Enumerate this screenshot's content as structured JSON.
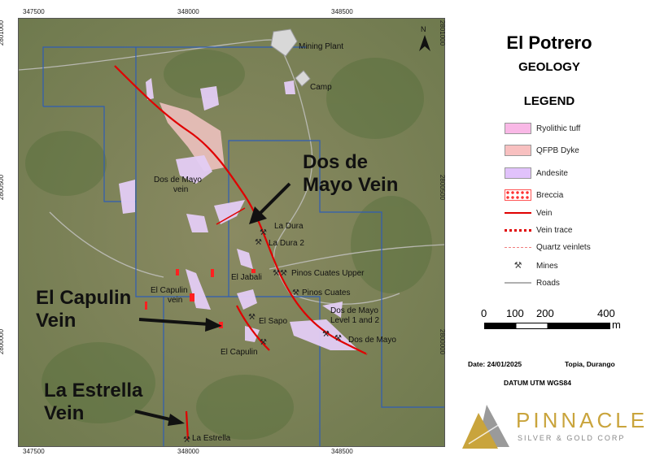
{
  "map": {
    "coords_top": [
      "347500",
      "348000",
      "348500"
    ],
    "coords_left": [
      "2801000",
      "2800500",
      "2800000"
    ],
    "north_label": "N",
    "labels": {
      "mining_plant": "Mining Plant",
      "camp": "Camp",
      "dos_de_mayo_vein_1": "Dos de Mayo",
      "dos_de_mayo_vein_2": "vein",
      "la_dura": "La Dura",
      "la_dura_2": "La Dura 2",
      "pinos_cuates_upper": "Pinos Cuates Upper",
      "el_jabali": "El Jabali",
      "pinos_cuates": "Pinos Cuates",
      "el_capulin_vein_1": "El Capulin",
      "el_capulin_vein_2": "vein",
      "el_sapo": "El Sapo",
      "dos_de_mayo_level_1": "Dos de Mayo",
      "dos_de_mayo_level_2": "Level 1 and 2",
      "dos_de_mayo": "Dos de Mayo",
      "el_capulin": "El Capulin",
      "la_estrella": "La Estrella"
    },
    "callouts": {
      "dos_de_mayo_vein_1": "Dos de",
      "dos_de_mayo_vein_2": "Mayo Vein",
      "el_capulin_vein_1": "El Capulin",
      "el_capulin_vein_2": "Vein",
      "la_estrella_vein_1": "La Estrella",
      "la_estrella_vein_2": "Vein"
    }
  },
  "title": "El Potrero",
  "subtitle": "GEOLOGY",
  "legend": {
    "title": "LEGEND",
    "items": [
      {
        "label": "Ryolithic tuff",
        "color": "#f9b8e6"
      },
      {
        "label": "QFPB Dyke",
        "color": "#f8c0c0"
      },
      {
        "label": "Andesite",
        "color": "#e1c2fb"
      },
      {
        "label": "Breccia",
        "color": "#ff0000"
      },
      {
        "label": "Vein",
        "color": "#e00000"
      },
      {
        "label": "Vein trace",
        "color": "#e00000"
      },
      {
        "label": "Quartz veinlets",
        "color": "#f08080"
      },
      {
        "label": "Mines",
        "icon": "pickaxe-icon"
      },
      {
        "label": "Roads",
        "color": "#b0b0b0"
      }
    ]
  },
  "scale_bar": {
    "ticks": [
      "0",
      "100",
      "200",
      "400"
    ],
    "unit": "m"
  },
  "info": {
    "date": "Date: 24/01/2025",
    "location": "Topia, Durango",
    "datum": "DATUM UTM WGS84"
  },
  "logo": {
    "name": "PINNACLE",
    "tagline": "SILVER & GOLD CORP"
  }
}
